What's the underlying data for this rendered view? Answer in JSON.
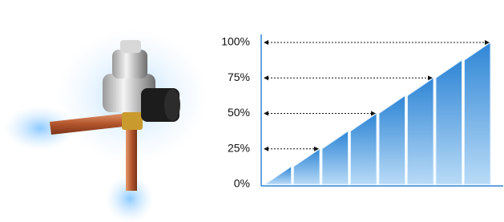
{
  "chart_data": {
    "type": "bar",
    "values": [
      12.5,
      25,
      37.5,
      50,
      62.5,
      75,
      87.5,
      100
    ],
    "color": "#2f86d6",
    "ylim": [
      0,
      100
    ],
    "yticks": [
      {
        "value": 0,
        "label": "0%"
      },
      {
        "value": 25,
        "label": "25%"
      },
      {
        "value": 50,
        "label": "50%"
      },
      {
        "value": 75,
        "label": "75%"
      },
      {
        "value": 100,
        "label": "100%"
      }
    ],
    "guides": true
  }
}
